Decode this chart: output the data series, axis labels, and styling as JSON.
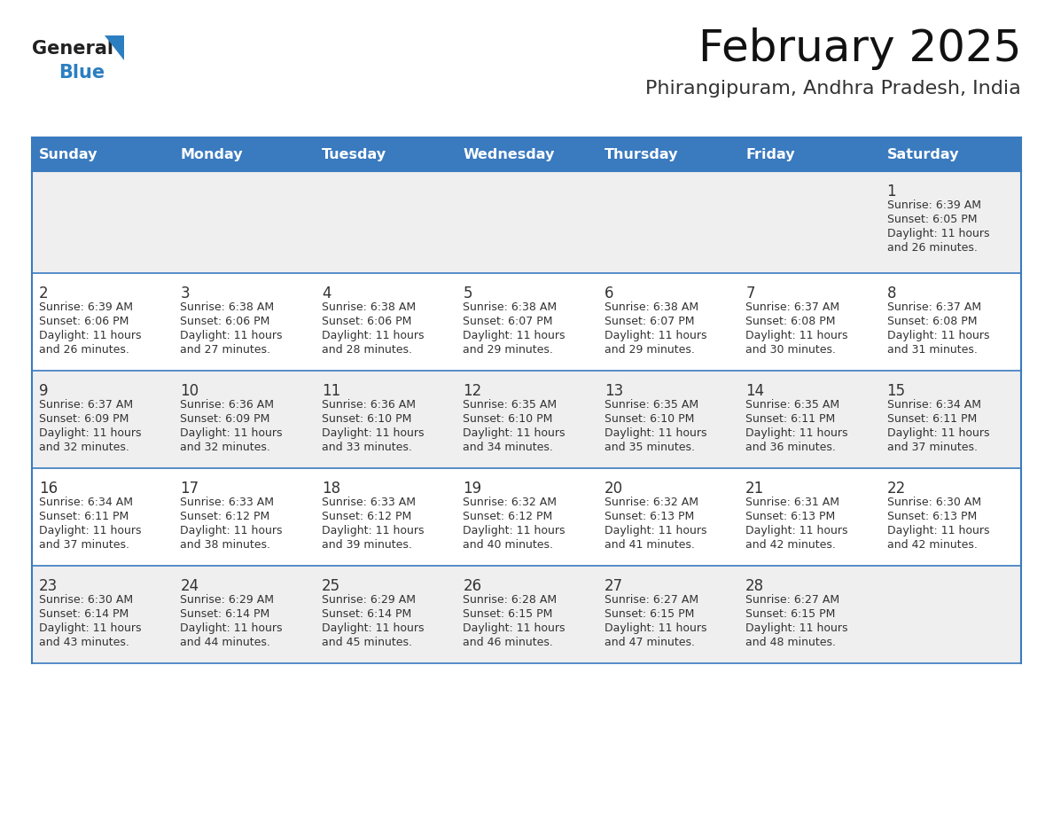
{
  "title": "February 2025",
  "subtitle": "Phirangipuram, Andhra Pradesh, India",
  "days_of_week": [
    "Sunday",
    "Monday",
    "Tuesday",
    "Wednesday",
    "Thursday",
    "Friday",
    "Saturday"
  ],
  "header_bg": "#3a7abf",
  "header_text": "#ffffff",
  "row_bg_odd": "#efefef",
  "row_bg_even": "#ffffff",
  "border_color": "#3a7abf",
  "day_num_color": "#333333",
  "cell_text_color": "#333333",
  "title_color": "#111111",
  "subtitle_color": "#333333",
  "logo_general_color": "#222222",
  "logo_blue_color": "#2b7fc1",
  "fig_width": 11.88,
  "fig_height": 9.18,
  "dpi": 100,
  "weeks": [
    [
      null,
      null,
      null,
      null,
      null,
      null,
      1
    ],
    [
      2,
      3,
      4,
      5,
      6,
      7,
      8
    ],
    [
      9,
      10,
      11,
      12,
      13,
      14,
      15
    ],
    [
      16,
      17,
      18,
      19,
      20,
      21,
      22
    ],
    [
      23,
      24,
      25,
      26,
      27,
      28,
      null
    ]
  ],
  "cell_data": {
    "1": {
      "sunrise": "6:39 AM",
      "sunset": "6:05 PM",
      "daylight_h": "11 hours",
      "daylight_m": "and 26 minutes."
    },
    "2": {
      "sunrise": "6:39 AM",
      "sunset": "6:06 PM",
      "daylight_h": "11 hours",
      "daylight_m": "and 26 minutes."
    },
    "3": {
      "sunrise": "6:38 AM",
      "sunset": "6:06 PM",
      "daylight_h": "11 hours",
      "daylight_m": "and 27 minutes."
    },
    "4": {
      "sunrise": "6:38 AM",
      "sunset": "6:06 PM",
      "daylight_h": "11 hours",
      "daylight_m": "and 28 minutes."
    },
    "5": {
      "sunrise": "6:38 AM",
      "sunset": "6:07 PM",
      "daylight_h": "11 hours",
      "daylight_m": "and 29 minutes."
    },
    "6": {
      "sunrise": "6:38 AM",
      "sunset": "6:07 PM",
      "daylight_h": "11 hours",
      "daylight_m": "and 29 minutes."
    },
    "7": {
      "sunrise": "6:37 AM",
      "sunset": "6:08 PM",
      "daylight_h": "11 hours",
      "daylight_m": "and 30 minutes."
    },
    "8": {
      "sunrise": "6:37 AM",
      "sunset": "6:08 PM",
      "daylight_h": "11 hours",
      "daylight_m": "and 31 minutes."
    },
    "9": {
      "sunrise": "6:37 AM",
      "sunset": "6:09 PM",
      "daylight_h": "11 hours",
      "daylight_m": "and 32 minutes."
    },
    "10": {
      "sunrise": "6:36 AM",
      "sunset": "6:09 PM",
      "daylight_h": "11 hours",
      "daylight_m": "and 32 minutes."
    },
    "11": {
      "sunrise": "6:36 AM",
      "sunset": "6:10 PM",
      "daylight_h": "11 hours",
      "daylight_m": "and 33 minutes."
    },
    "12": {
      "sunrise": "6:35 AM",
      "sunset": "6:10 PM",
      "daylight_h": "11 hours",
      "daylight_m": "and 34 minutes."
    },
    "13": {
      "sunrise": "6:35 AM",
      "sunset": "6:10 PM",
      "daylight_h": "11 hours",
      "daylight_m": "and 35 minutes."
    },
    "14": {
      "sunrise": "6:35 AM",
      "sunset": "6:11 PM",
      "daylight_h": "11 hours",
      "daylight_m": "and 36 minutes."
    },
    "15": {
      "sunrise": "6:34 AM",
      "sunset": "6:11 PM",
      "daylight_h": "11 hours",
      "daylight_m": "and 37 minutes."
    },
    "16": {
      "sunrise": "6:34 AM",
      "sunset": "6:11 PM",
      "daylight_h": "11 hours",
      "daylight_m": "and 37 minutes."
    },
    "17": {
      "sunrise": "6:33 AM",
      "sunset": "6:12 PM",
      "daylight_h": "11 hours",
      "daylight_m": "and 38 minutes."
    },
    "18": {
      "sunrise": "6:33 AM",
      "sunset": "6:12 PM",
      "daylight_h": "11 hours",
      "daylight_m": "and 39 minutes."
    },
    "19": {
      "sunrise": "6:32 AM",
      "sunset": "6:12 PM",
      "daylight_h": "11 hours",
      "daylight_m": "and 40 minutes."
    },
    "20": {
      "sunrise": "6:32 AM",
      "sunset": "6:13 PM",
      "daylight_h": "11 hours",
      "daylight_m": "and 41 minutes."
    },
    "21": {
      "sunrise": "6:31 AM",
      "sunset": "6:13 PM",
      "daylight_h": "11 hours",
      "daylight_m": "and 42 minutes."
    },
    "22": {
      "sunrise": "6:30 AM",
      "sunset": "6:13 PM",
      "daylight_h": "11 hours",
      "daylight_m": "and 42 minutes."
    },
    "23": {
      "sunrise": "6:30 AM",
      "sunset": "6:14 PM",
      "daylight_h": "11 hours",
      "daylight_m": "and 43 minutes."
    },
    "24": {
      "sunrise": "6:29 AM",
      "sunset": "6:14 PM",
      "daylight_h": "11 hours",
      "daylight_m": "and 44 minutes."
    },
    "25": {
      "sunrise": "6:29 AM",
      "sunset": "6:14 PM",
      "daylight_h": "11 hours",
      "daylight_m": "and 45 minutes."
    },
    "26": {
      "sunrise": "6:28 AM",
      "sunset": "6:15 PM",
      "daylight_h": "11 hours",
      "daylight_m": "and 46 minutes."
    },
    "27": {
      "sunrise": "6:27 AM",
      "sunset": "6:15 PM",
      "daylight_h": "11 hours",
      "daylight_m": "and 47 minutes."
    },
    "28": {
      "sunrise": "6:27 AM",
      "sunset": "6:15 PM",
      "daylight_h": "11 hours",
      "daylight_m": "and 48 minutes."
    }
  }
}
